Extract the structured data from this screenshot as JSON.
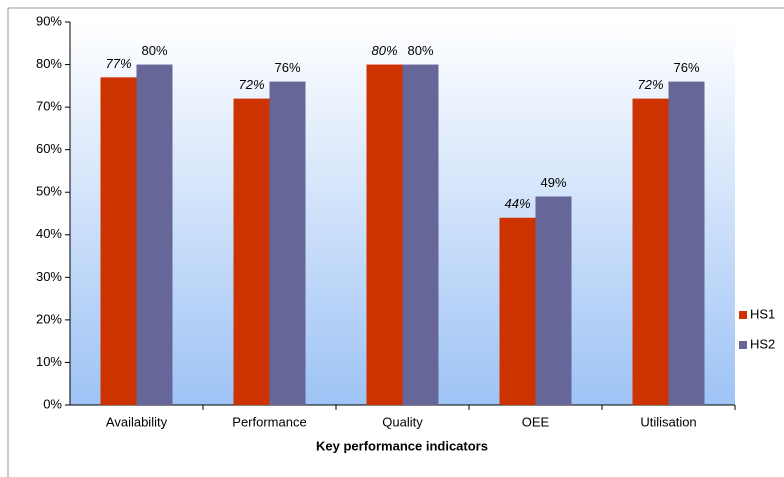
{
  "chart_data": {
    "type": "bar",
    "x_label": "Key performance indicators",
    "categories": [
      "Availability",
      "Performance",
      "Quality",
      "OEE",
      "Utilisation"
    ],
    "series": [
      {
        "name": "HS1",
        "color": "#cc3300",
        "values": [
          77,
          72,
          80,
          44,
          72
        ],
        "value_labels": [
          "77%",
          "72%",
          "80%",
          "44%",
          "72%"
        ]
      },
      {
        "name": "HS2",
        "color": "#666699",
        "values": [
          80,
          76,
          80,
          49,
          76
        ],
        "value_labels": [
          "80%",
          "76%",
          "80%",
          "49%",
          "76%"
        ]
      }
    ],
    "ylim": [
      0,
      90
    ],
    "yticks": [
      {
        "value": 0,
        "label": "0%"
      },
      {
        "value": 10,
        "label": "10%"
      },
      {
        "value": 20,
        "label": "20%"
      },
      {
        "value": 30,
        "label": "30%"
      },
      {
        "value": 40,
        "label": "40%"
      },
      {
        "value": 50,
        "label": "50%"
      },
      {
        "value": 60,
        "label": "60%"
      },
      {
        "value": 70,
        "label": "70%"
      },
      {
        "value": 80,
        "label": "80%"
      },
      {
        "value": 90,
        "label": "90%"
      }
    ],
    "legend": "right"
  }
}
